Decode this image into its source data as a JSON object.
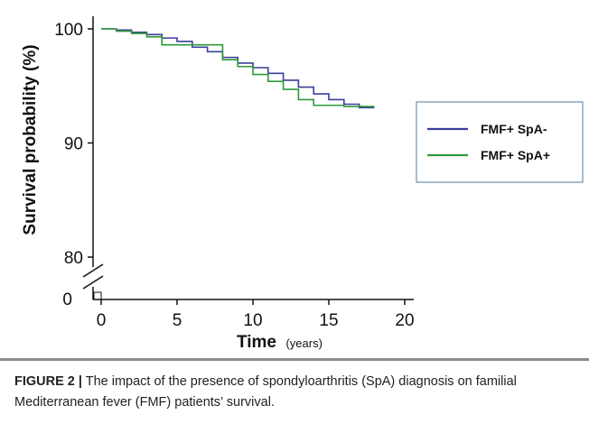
{
  "chart_data": {
    "type": "line",
    "step": true,
    "xlabel": "Time",
    "xlabel_unit": "(years)",
    "ylabel": "Survival probability (%)",
    "xlim": [
      0,
      20
    ],
    "x_ticks": [
      0,
      5,
      10,
      15,
      20
    ],
    "y_ticks": [
      80,
      90,
      100
    ],
    "y_zero_label": "0",
    "y_break": true,
    "grid": false,
    "legend_position": "right",
    "series": [
      {
        "name": "FMF+ SpA-",
        "color": "#3a3f9a",
        "x": [
          0,
          1,
          2,
          3,
          4,
          5,
          6,
          7,
          8,
          9,
          10,
          11,
          12,
          13,
          14,
          15,
          16,
          17,
          18
        ],
        "y": [
          100,
          99.9,
          99.7,
          99.5,
          99.2,
          98.9,
          98.4,
          98.0,
          97.5,
          97.0,
          96.6,
          96.1,
          95.5,
          94.9,
          94.3,
          93.8,
          93.4,
          93.1,
          93.1
        ]
      },
      {
        "name": "FMF+ SpA+",
        "color": "#2e9a3a",
        "x": [
          0,
          1,
          2,
          3,
          4,
          5,
          6,
          7,
          8,
          9,
          10,
          11,
          12,
          13,
          14,
          15,
          16,
          17,
          18
        ],
        "y": [
          100,
          99.8,
          99.6,
          99.3,
          98.6,
          98.6,
          98.6,
          98.6,
          97.3,
          96.7,
          96.0,
          95.4,
          94.7,
          93.8,
          93.3,
          93.3,
          93.2,
          93.2,
          93.2
        ]
      }
    ]
  },
  "caption": {
    "lead": "FIGURE 2 |",
    "text": " The impact of the presence of spondyloarthritis (SpA) diagnosis on familial Mediterranean fever (FMF) patients’ survival."
  }
}
